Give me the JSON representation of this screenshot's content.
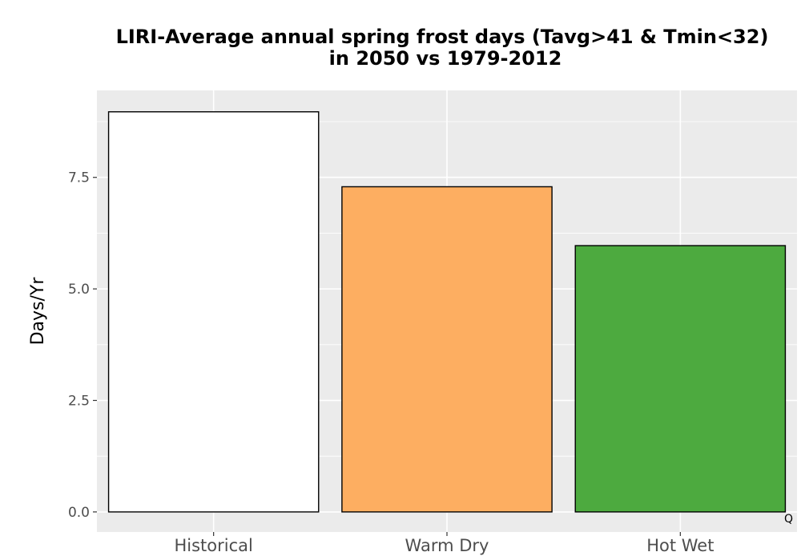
{
  "chart_data": {
    "type": "bar",
    "title": "LIRI-Average annual spring frost days (Tavg>41 & Tmin<32)",
    "subtitle": "in 2050 vs 1979-2012",
    "xlabel": "",
    "ylabel": "Days/Yr",
    "categories": [
      "Historical",
      "Warm Dry",
      "Hot Wet"
    ],
    "values": [
      8.97,
      7.29,
      5.97
    ],
    "colors": [
      "#ffffff",
      "#fdae61",
      "#4daa3f"
    ],
    "bar_outline": "#000000",
    "ylim": [
      -0.45,
      9.45
    ],
    "yticks": [
      0.0,
      2.5,
      5.0,
      7.5
    ],
    "ytick_labels": [
      "0.0",
      "2.5",
      "5.0",
      "7.5"
    ],
    "grid": true,
    "panel_background": "#ebebeb",
    "legend": "none"
  },
  "corner_note": "Q"
}
